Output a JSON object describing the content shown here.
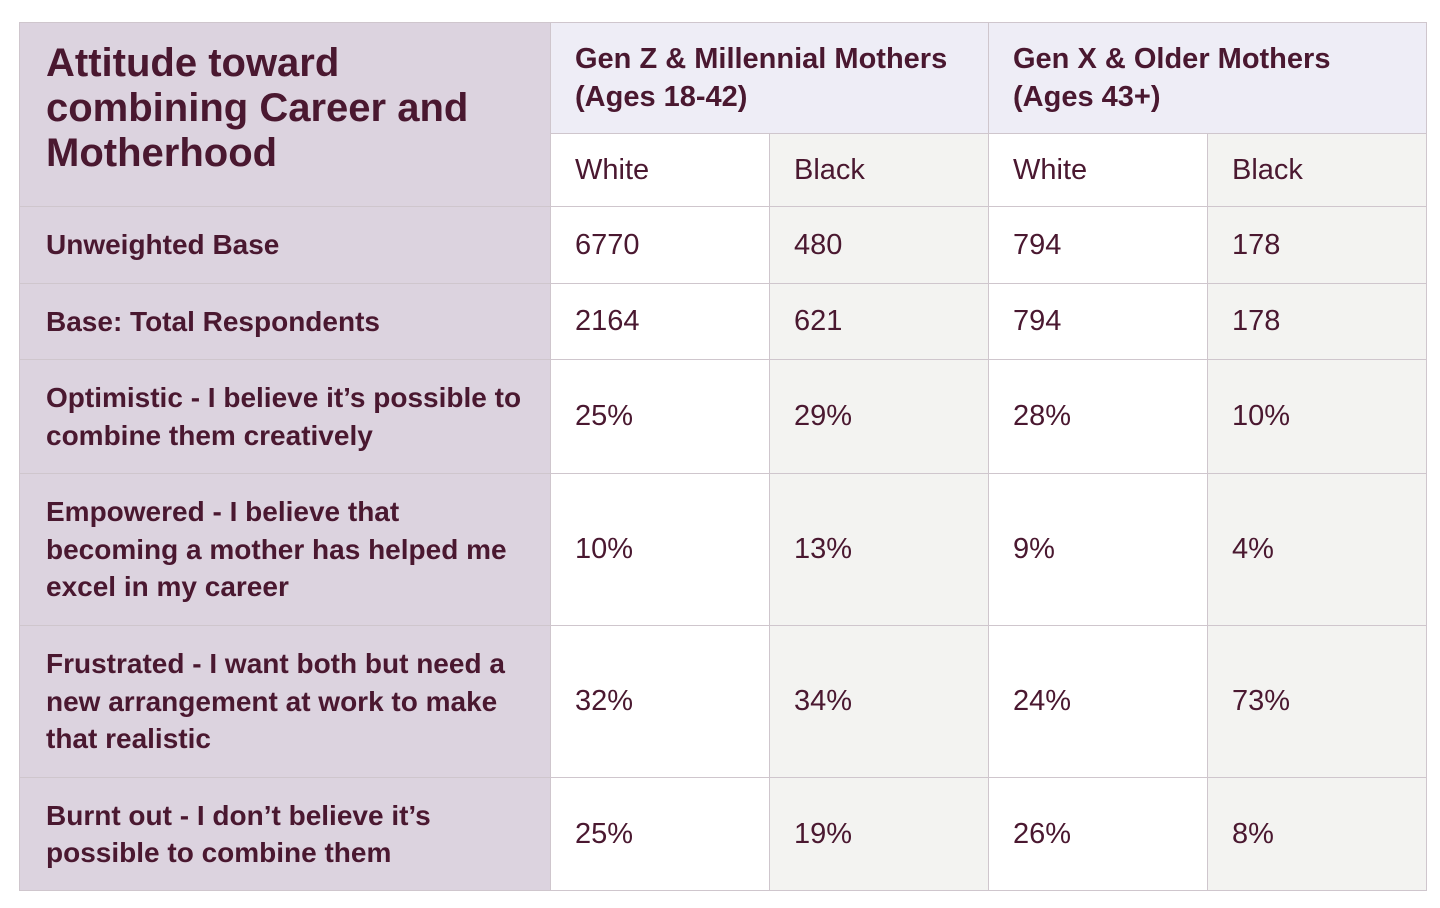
{
  "table": {
    "corner_title": "Attitude toward combining Career and Motherhood",
    "groups": [
      {
        "label": "Gen Z & Millennial Mothers (Ages 18-42)"
      },
      {
        "label": "Gen X & Older Mothers (Ages 43+)"
      }
    ],
    "subheaders": [
      "White",
      "Black",
      "White",
      "Black"
    ],
    "rows": [
      {
        "label": "Unweighted Base",
        "values": [
          "6770",
          "480",
          "794",
          "178"
        ]
      },
      {
        "label": "Base: Total Respondents",
        "values": [
          "2164",
          "621",
          "794",
          "178"
        ]
      },
      {
        "label": "Optimistic - I believe it’s possible to combine them creatively",
        "values": [
          "25%",
          "29%",
          "28%",
          "10%"
        ]
      },
      {
        "label": "Empowered - I believe that becoming a mother has helped me excel in my career",
        "values": [
          "10%",
          "13%",
          "9%",
          "4%"
        ]
      },
      {
        "label": "Frustrated - I want both but need a new arrangement at work to make that realistic",
        "values": [
          "32%",
          "34%",
          "24%",
          "73%"
        ]
      },
      {
        "label": "Burnt out - I don’t believe it’s possible to combine them",
        "values": [
          "25%",
          "19%",
          "26%",
          "8%"
        ]
      }
    ]
  }
}
